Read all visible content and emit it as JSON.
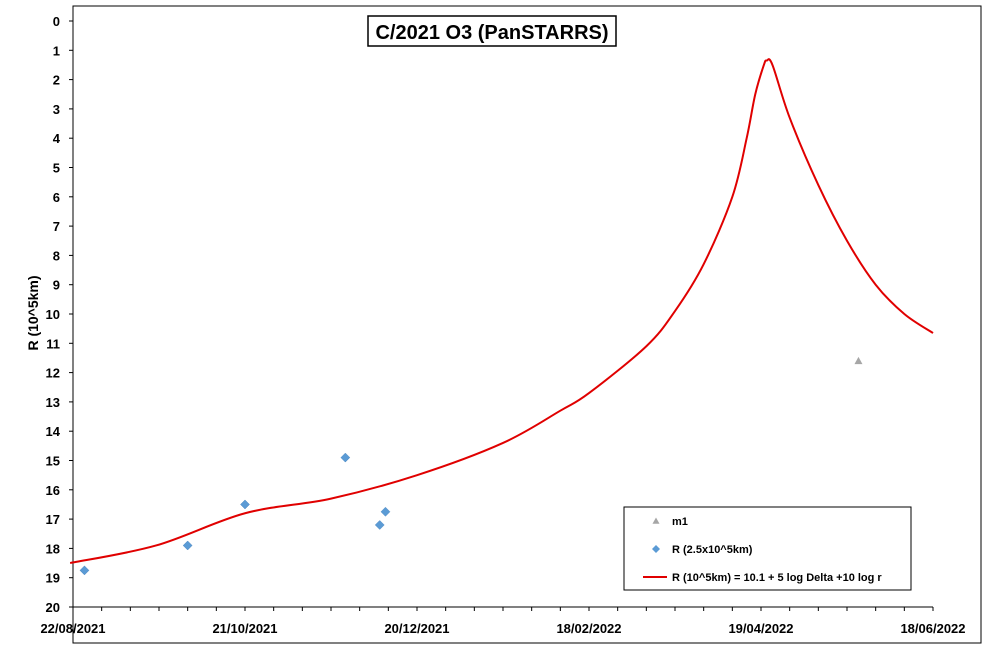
{
  "chart_data": {
    "type": "scatter",
    "title": "C/2021 O3 (PanSTARRS)",
    "xlabel": "",
    "ylabel": "R (10^5km)",
    "ylim": [
      0,
      20
    ],
    "y_reversed": true,
    "xlim": [
      "2021-08-22",
      "2022-06-18"
    ],
    "x_tick_labels": [
      "22/08/2021",
      "21/10/2021",
      "20/12/2021",
      "18/02/2022",
      "19/04/2022",
      "18/06/2022"
    ],
    "y_tick_labels": [
      "0",
      "1",
      "2",
      "3",
      "4",
      "5",
      "6",
      "7",
      "8",
      "9",
      "10",
      "11",
      "12",
      "13",
      "14",
      "15",
      "16",
      "17",
      "18",
      "19",
      "20"
    ],
    "grid": false,
    "legend_position": "bottom-right",
    "series": [
      {
        "name": "m1",
        "kind": "marker-triangle",
        "color": "#a6a6a6",
        "points": [
          {
            "x": "2022-05-23",
            "y": 11.6
          }
        ]
      },
      {
        "name": "R (2.5x10^5km)",
        "kind": "marker-diamond",
        "color": "#5b9bd5",
        "points": [
          {
            "x": "2021-08-26",
            "y": 18.75
          },
          {
            "x": "2021-10-01",
            "y": 17.9
          },
          {
            "x": "2021-10-21",
            "y": 16.5
          },
          {
            "x": "2021-11-25",
            "y": 14.9
          },
          {
            "x": "2021-12-07",
            "y": 17.2
          },
          {
            "x": "2021-12-09",
            "y": 16.75
          }
        ]
      },
      {
        "name": "R (10^5km) = 10.1 + 5 log Delta +10 log r",
        "kind": "line",
        "color": "#e00000",
        "points": [
          {
            "x": "2021-08-21",
            "y": 18.5
          },
          {
            "x": "2021-09-20",
            "y": 17.9
          },
          {
            "x": "2021-10-21",
            "y": 16.8
          },
          {
            "x": "2021-11-20",
            "y": 16.3
          },
          {
            "x": "2021-12-20",
            "y": 15.5
          },
          {
            "x": "2022-01-19",
            "y": 14.4
          },
          {
            "x": "2022-02-08",
            "y": 13.3
          },
          {
            "x": "2022-02-18",
            "y": 12.7
          },
          {
            "x": "2022-03-10",
            "y": 11.1
          },
          {
            "x": "2022-03-20",
            "y": 9.9
          },
          {
            "x": "2022-03-30",
            "y": 8.3
          },
          {
            "x": "2022-04-09",
            "y": 6.0
          },
          {
            "x": "2022-04-14",
            "y": 4.0
          },
          {
            "x": "2022-04-17",
            "y": 2.5
          },
          {
            "x": "2022-04-20",
            "y": 1.5
          },
          {
            "x": "2022-04-21",
            "y": 1.35
          },
          {
            "x": "2022-04-23",
            "y": 1.5
          },
          {
            "x": "2022-04-29",
            "y": 3.3
          },
          {
            "x": "2022-05-09",
            "y": 5.6
          },
          {
            "x": "2022-05-19",
            "y": 7.5
          },
          {
            "x": "2022-05-29",
            "y": 9.0
          },
          {
            "x": "2022-06-08",
            "y": 10.0
          },
          {
            "x": "2022-06-18",
            "y": 10.65
          }
        ]
      }
    ]
  }
}
